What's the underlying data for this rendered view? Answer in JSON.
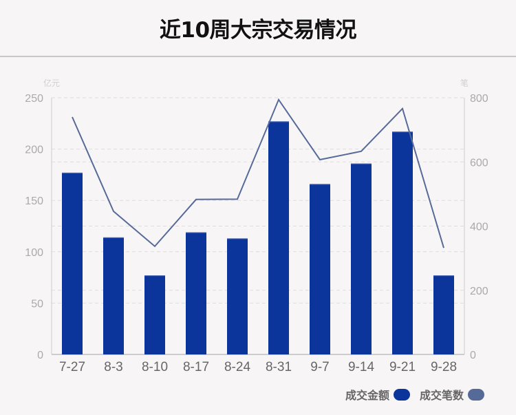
{
  "title": "近10周大宗交易情况",
  "colors": {
    "bar": "#0c359c",
    "line": "#566a98",
    "grid": "#dddddd",
    "axis": "#cccccc",
    "tick_label": "#aaaaaa",
    "category_label": "#666666"
  },
  "legend": [
    {
      "label": "成交金额",
      "color": "#0c359c"
    },
    {
      "label": "成交笔数",
      "color": "#566a98"
    }
  ],
  "chart_data": {
    "type": "bar",
    "title": "近10周大宗交易情况",
    "categories": [
      "7-27",
      "8-3",
      "8-10",
      "8-17",
      "8-24",
      "8-31",
      "9-7",
      "9-14",
      "9-21",
      "9-28"
    ],
    "series": [
      {
        "name": "成交金额",
        "type": "bar",
        "axis": "left",
        "unit": "亿元",
        "values": [
          177,
          114,
          77,
          119,
          113,
          227,
          166,
          186,
          217,
          77
        ]
      },
      {
        "name": "成交笔数",
        "type": "line",
        "axis": "right",
        "unit": "笔",
        "values": [
          740,
          446,
          337,
          483,
          484,
          794,
          607,
          633,
          766,
          332
        ]
      }
    ],
    "left_axis": {
      "label": "亿元",
      "ylim": [
        0,
        250
      ],
      "ticks": [
        0,
        50,
        100,
        150,
        200,
        250
      ]
    },
    "right_axis": {
      "label": "笔",
      "ylim": [
        0,
        800
      ],
      "ticks": [
        0,
        200,
        400,
        600,
        800
      ]
    },
    "grid": true,
    "legend_position": "bottom-right"
  }
}
